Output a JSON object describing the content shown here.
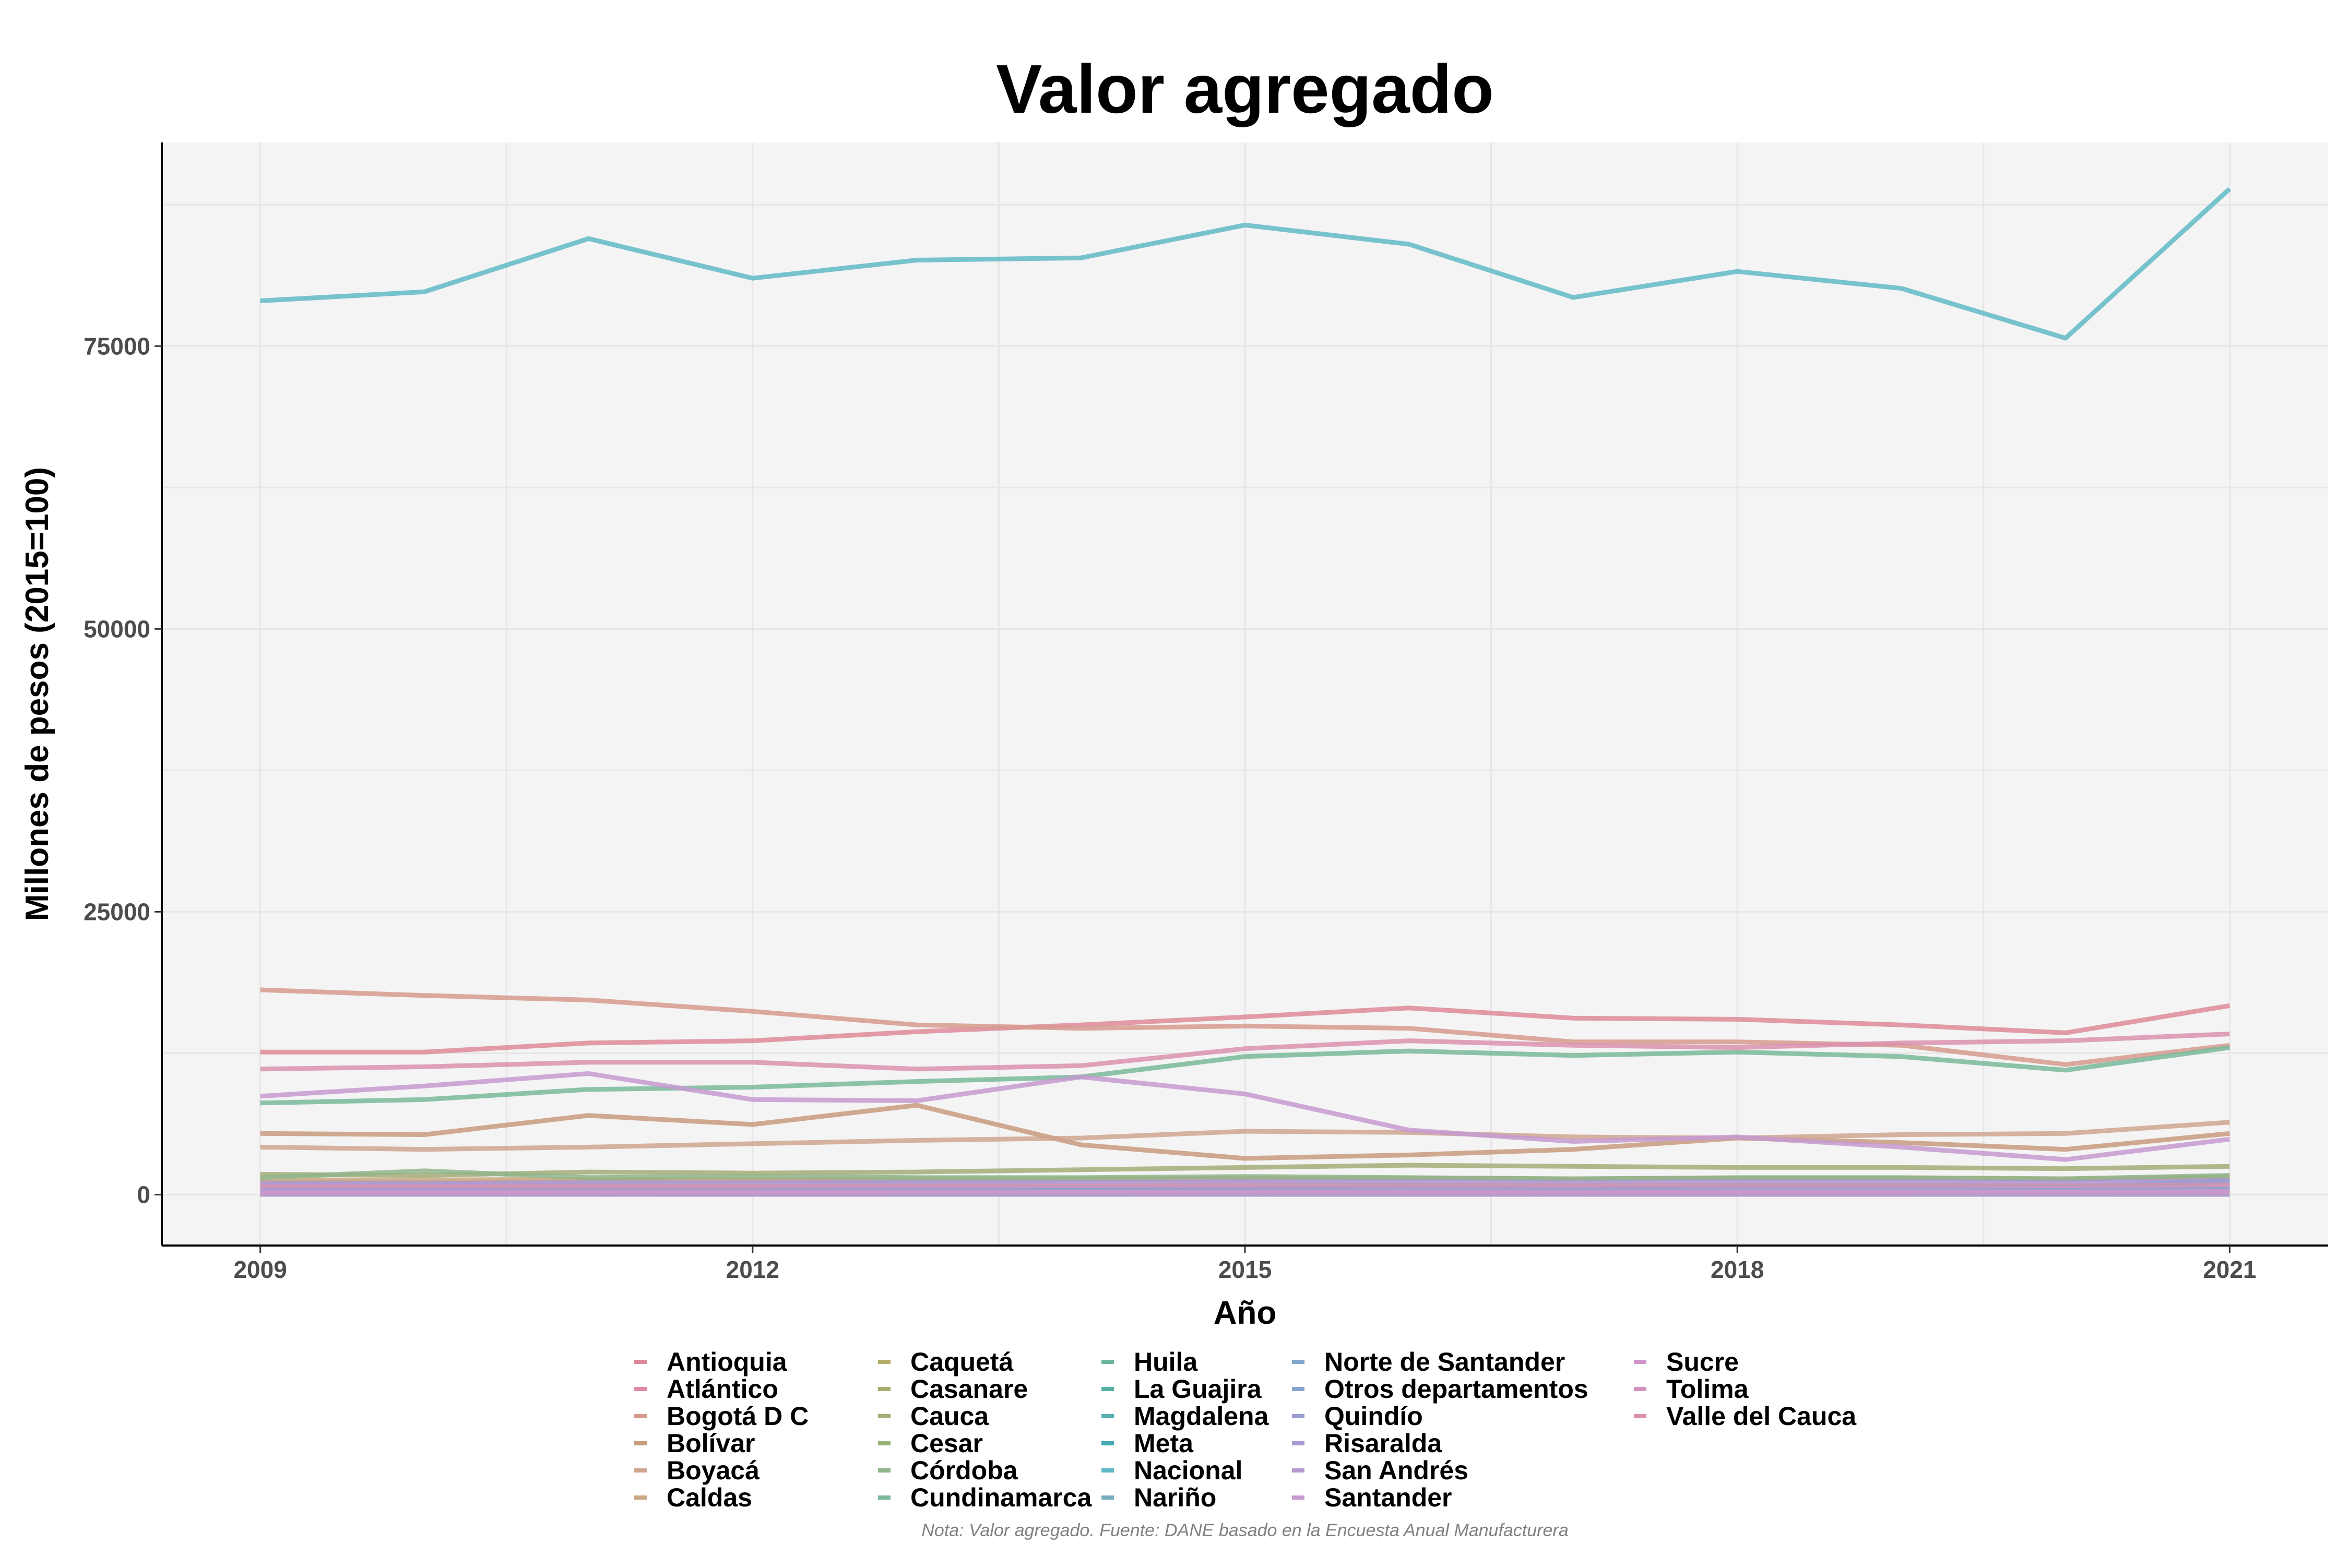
{
  "chart_data": {
    "type": "line",
    "title": "Valor agregado",
    "xlabel": "Año",
    "ylabel": "Millones de pesos (2015=100)",
    "note": "Nota: Valor agregado. Fuente: DANE basado en la Encuesta Anual Manufacturera",
    "x": [
      2009,
      2010,
      2011,
      2012,
      2013,
      2014,
      2015,
      2016,
      2017,
      2018,
      2019,
      2020,
      2021
    ],
    "x_ticks": [
      2009,
      2012,
      2015,
      2018,
      2021
    ],
    "xlim": [
      2008.4,
      2021.6
    ],
    "y_ticks": [
      0,
      25000,
      50000,
      75000
    ],
    "ylim": [
      -4500,
      93000
    ],
    "grid": true,
    "legend_position": "bottom",
    "series": [
      {
        "name": "Antioquia",
        "color": "#dd8a98",
        "values": [
          12600,
          12600,
          13400,
          13600,
          14400,
          15000,
          15700,
          16500,
          15600,
          15500,
          15000,
          14300,
          16700
        ]
      },
      {
        "name": "Atlántico",
        "color": "#dd8aa4",
        "values": [
          1100,
          1100,
          1150,
          1200,
          1250,
          1300,
          1350,
          1400,
          1350,
          1400,
          1400,
          1300,
          1500
        ]
      },
      {
        "name": "Bogotá D C",
        "color": "#d69a8e",
        "values": [
          18100,
          17600,
          17200,
          16200,
          15000,
          14700,
          14900,
          14700,
          13500,
          13500,
          13200,
          11500,
          13200
        ]
      },
      {
        "name": "Bolívar",
        "color": "#c89a7e",
        "values": [
          5400,
          5300,
          7000,
          6200,
          7900,
          4400,
          3200,
          3500,
          4000,
          5000,
          4600,
          4000,
          5400
        ]
      },
      {
        "name": "Boyacá",
        "color": "#cfa58f",
        "values": [
          4200,
          4000,
          4200,
          4500,
          4800,
          5000,
          5600,
          5500,
          5100,
          5000,
          5300,
          5400,
          6400
        ]
      },
      {
        "name": "Caldas",
        "color": "#c8a882",
        "values": [
          1300,
          1300,
          1350,
          1350,
          1400,
          1400,
          1450,
          1450,
          1400,
          1450,
          1450,
          1400,
          1600
        ]
      },
      {
        "name": "Caquetá",
        "color": "#b3ae67",
        "values": [
          100,
          100,
          100,
          100,
          100,
          100,
          110,
          110,
          110,
          110,
          110,
          110,
          120
        ]
      },
      {
        "name": "Casanare",
        "color": "#a8ad6c",
        "values": [
          200,
          200,
          220,
          230,
          230,
          240,
          240,
          250,
          250,
          250,
          250,
          240,
          260
        ]
      },
      {
        "name": "Cauca",
        "color": "#a3ad78",
        "values": [
          1800,
          1700,
          2000,
          1900,
          2000,
          2200,
          2400,
          2600,
          2500,
          2400,
          2400,
          2300,
          2500
        ]
      },
      {
        "name": "Cesar",
        "color": "#99b27a",
        "values": [
          700,
          700,
          750,
          750,
          800,
          820,
          850,
          870,
          850,
          860,
          860,
          820,
          900
        ]
      },
      {
        "name": "Córdoba",
        "color": "#8fb58a",
        "values": [
          1500,
          2100,
          1500,
          1600,
          1500,
          1500,
          1600,
          1500,
          1400,
          1500,
          1500,
          1400,
          1700
        ]
      },
      {
        "name": "Cundinamarca",
        "color": "#79b89a",
        "values": [
          8100,
          8400,
          9300,
          9500,
          10000,
          10400,
          12200,
          12700,
          12300,
          12600,
          12200,
          11000,
          13000
        ]
      },
      {
        "name": "Huila",
        "color": "#6db59e",
        "values": [
          400,
          400,
          420,
          430,
          440,
          450,
          470,
          480,
          470,
          480,
          480,
          460,
          500
        ]
      },
      {
        "name": "La Guajira",
        "color": "#58b2a4",
        "values": [
          100,
          100,
          100,
          110,
          110,
          110,
          110,
          120,
          120,
          120,
          120,
          110,
          130
        ]
      },
      {
        "name": "Magdalena",
        "color": "#55b0b0",
        "values": [
          300,
          300,
          320,
          330,
          340,
          350,
          360,
          370,
          360,
          370,
          370,
          350,
          390
        ]
      },
      {
        "name": "Meta",
        "color": "#44aab3",
        "values": [
          500,
          500,
          520,
          540,
          560,
          580,
          600,
          620,
          600,
          620,
          650,
          700,
          1200
        ]
      },
      {
        "name": "Nacional",
        "color": "#5fb8c6",
        "values": [
          79000,
          79800,
          84500,
          81000,
          82600,
          82800,
          85700,
          84000,
          79300,
          81600,
          80100,
          75700,
          88900
        ]
      },
      {
        "name": "Nariño",
        "color": "#76aec0",
        "values": [
          200,
          200,
          210,
          220,
          230,
          230,
          240,
          250,
          240,
          250,
          250,
          240,
          260
        ]
      },
      {
        "name": "Norte de Santander",
        "color": "#7ea7cb",
        "values": [
          500,
          500,
          520,
          530,
          540,
          550,
          560,
          570,
          560,
          570,
          570,
          550,
          600
        ]
      },
      {
        "name": "Otros departamentos",
        "color": "#8ba4cf",
        "values": [
          300,
          300,
          320,
          330,
          340,
          350,
          360,
          370,
          360,
          370,
          370,
          350,
          400
        ]
      },
      {
        "name": "Quindío",
        "color": "#9a9ed2",
        "values": [
          300,
          300,
          310,
          320,
          330,
          340,
          350,
          360,
          350,
          360,
          360,
          340,
          380
        ]
      },
      {
        "name": "Risaralda",
        "color": "#a89ad3",
        "values": [
          1000,
          1000,
          1050,
          1050,
          1100,
          1100,
          1150,
          1150,
          1100,
          1150,
          1150,
          1100,
          1250
        ]
      },
      {
        "name": "San Andrés",
        "color": "#b69ad0",
        "values": [
          10,
          10,
          10,
          10,
          10,
          10,
          10,
          10,
          10,
          10,
          10,
          10,
          10
        ]
      },
      {
        "name": "Santander",
        "color": "#c59ad0",
        "values": [
          8700,
          9600,
          10700,
          8400,
          8300,
          10400,
          8900,
          5700,
          4700,
          5100,
          4200,
          3100,
          4900
        ]
      },
      {
        "name": "Sucre",
        "color": "#d096cb",
        "values": [
          200,
          200,
          210,
          220,
          230,
          230,
          240,
          250,
          240,
          250,
          250,
          240,
          260
        ]
      },
      {
        "name": "Tolima",
        "color": "#d492bb",
        "values": [
          700,
          700,
          720,
          740,
          760,
          780,
          800,
          820,
          800,
          820,
          820,
          780,
          860
        ]
      },
      {
        "name": "Valle del Cauca",
        "color": "#da90ae",
        "values": [
          11100,
          11300,
          11700,
          11700,
          11100,
          11400,
          12900,
          13600,
          13200,
          13000,
          13400,
          13600,
          14200
        ]
      }
    ]
  }
}
